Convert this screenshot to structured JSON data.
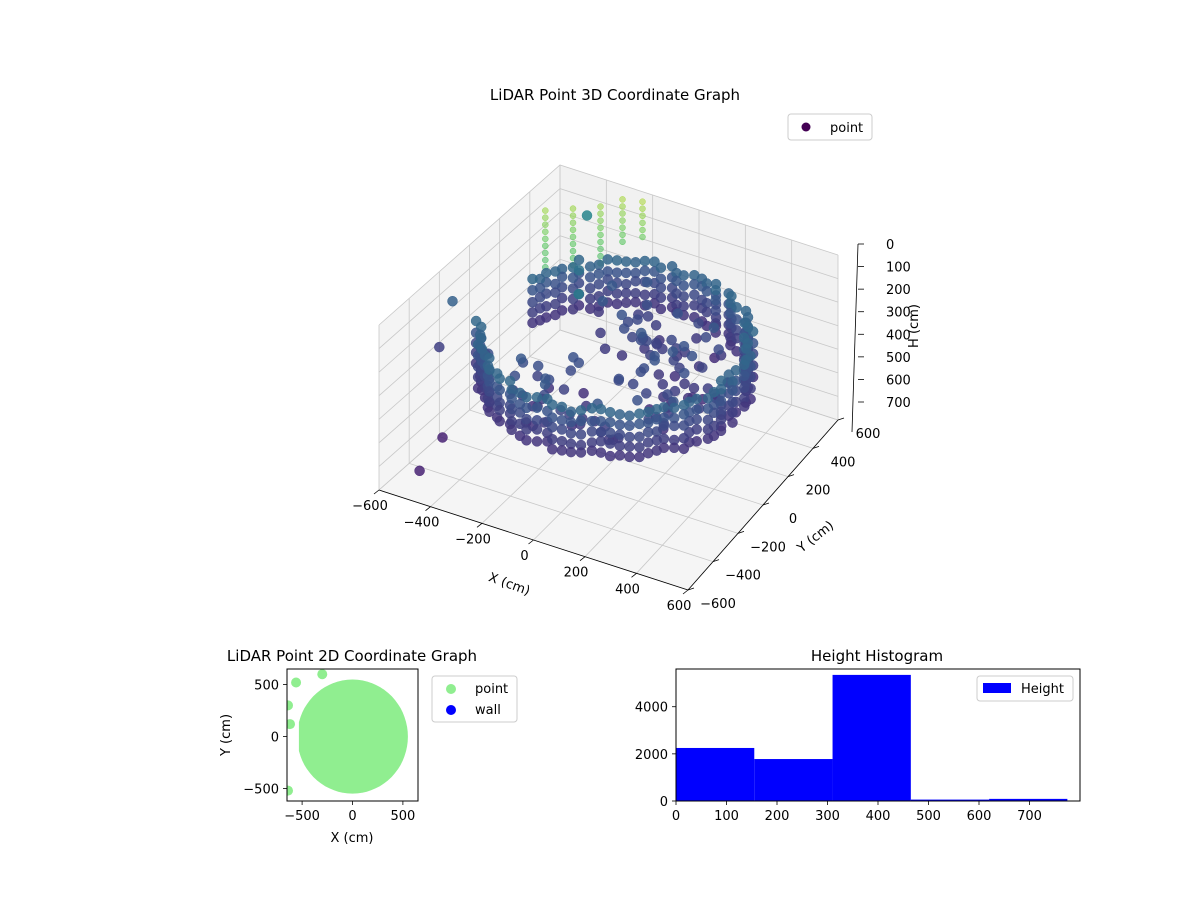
{
  "chart_data": [
    {
      "type": "scatter",
      "projection": "3d",
      "title": "LiDAR Point 3D Coordinate Graph",
      "xlabel": "X (cm)",
      "ylabel": "Y (cm)",
      "zlabel": "H (cm)",
      "xlim": [
        -600,
        600
      ],
      "ylim": [
        -600,
        600
      ],
      "zlim": [
        0,
        700
      ],
      "z_inverted": true,
      "x_ticks": [
        -600,
        -400,
        -200,
        0,
        200,
        400,
        600
      ],
      "y_ticks": [
        -600,
        -400,
        -200,
        0,
        200,
        400,
        600
      ],
      "z_ticks": [
        0,
        100,
        200,
        300,
        400,
        500,
        600,
        700
      ],
      "grid": true,
      "legend": {
        "placement": "top-right",
        "entries": [
          "point"
        ]
      },
      "colormap": "viridis (by height)",
      "series": [
        {
          "name": "point",
          "color": "#440154",
          "description_values": {
            "ring_radius_cm": 500,
            "ring_heights_cm": [
              180,
              400
            ],
            "tower_points_cm": [
              {
                "x": -560,
                "y": 440,
                "h_range": [
                  90,
                  330
                ]
              },
              {
                "x": -480,
                "y": 500,
                "h_range": [
                  90,
                  330
                ]
              },
              {
                "x": -400,
                "y": 560,
                "h_range": [
                  90,
                  330
                ]
              },
              {
                "x": -330,
                "y": 600,
                "h_range": [
                  60,
                  260
                ]
              },
              {
                "x": -250,
                "y": 610,
                "h_range": [
                  50,
                  200
                ]
              }
            ]
          }
        }
      ]
    },
    {
      "type": "scatter",
      "title": "LiDAR Point 2D Coordinate Graph",
      "xlabel": "X (cm)",
      "ylabel": "Y (cm)",
      "xlim": [
        -650,
        650
      ],
      "ylim": [
        -620,
        650
      ],
      "x_ticks": [
        -500,
        0,
        500
      ],
      "y_ticks": [
        -500,
        0,
        500
      ],
      "legend": {
        "placement": "right-outside",
        "entries": [
          "point",
          "wall"
        ]
      },
      "series": [
        {
          "name": "point",
          "color": "#90ee90",
          "shape": "disc radius ~520 cm with notch opening to -X near y=0"
        },
        {
          "name": "wall",
          "color": "#0000ff",
          "values": []
        }
      ]
    },
    {
      "type": "bar",
      "title": "Height Histogram",
      "xlabel": "",
      "ylabel": "",
      "xlim": [
        0,
        800
      ],
      "ylim": [
        0,
        5600
      ],
      "x_ticks": [
        0,
        100,
        200,
        300,
        400,
        500,
        600,
        700
      ],
      "y_ticks": [
        0,
        2000,
        4000
      ],
      "legend": {
        "placement": "top-right",
        "entries": [
          "Height"
        ]
      },
      "series": [
        {
          "name": "Height",
          "color": "#0000ff",
          "bins": [
            {
              "from": 0,
              "to": 155,
              "count": 2250
            },
            {
              "from": 155,
              "to": 310,
              "count": 1780
            },
            {
              "from": 310,
              "to": 465,
              "count": 5350
            },
            {
              "from": 465,
              "to": 620,
              "count": 60
            },
            {
              "from": 620,
              "to": 775,
              "count": 90
            }
          ]
        }
      ]
    }
  ]
}
